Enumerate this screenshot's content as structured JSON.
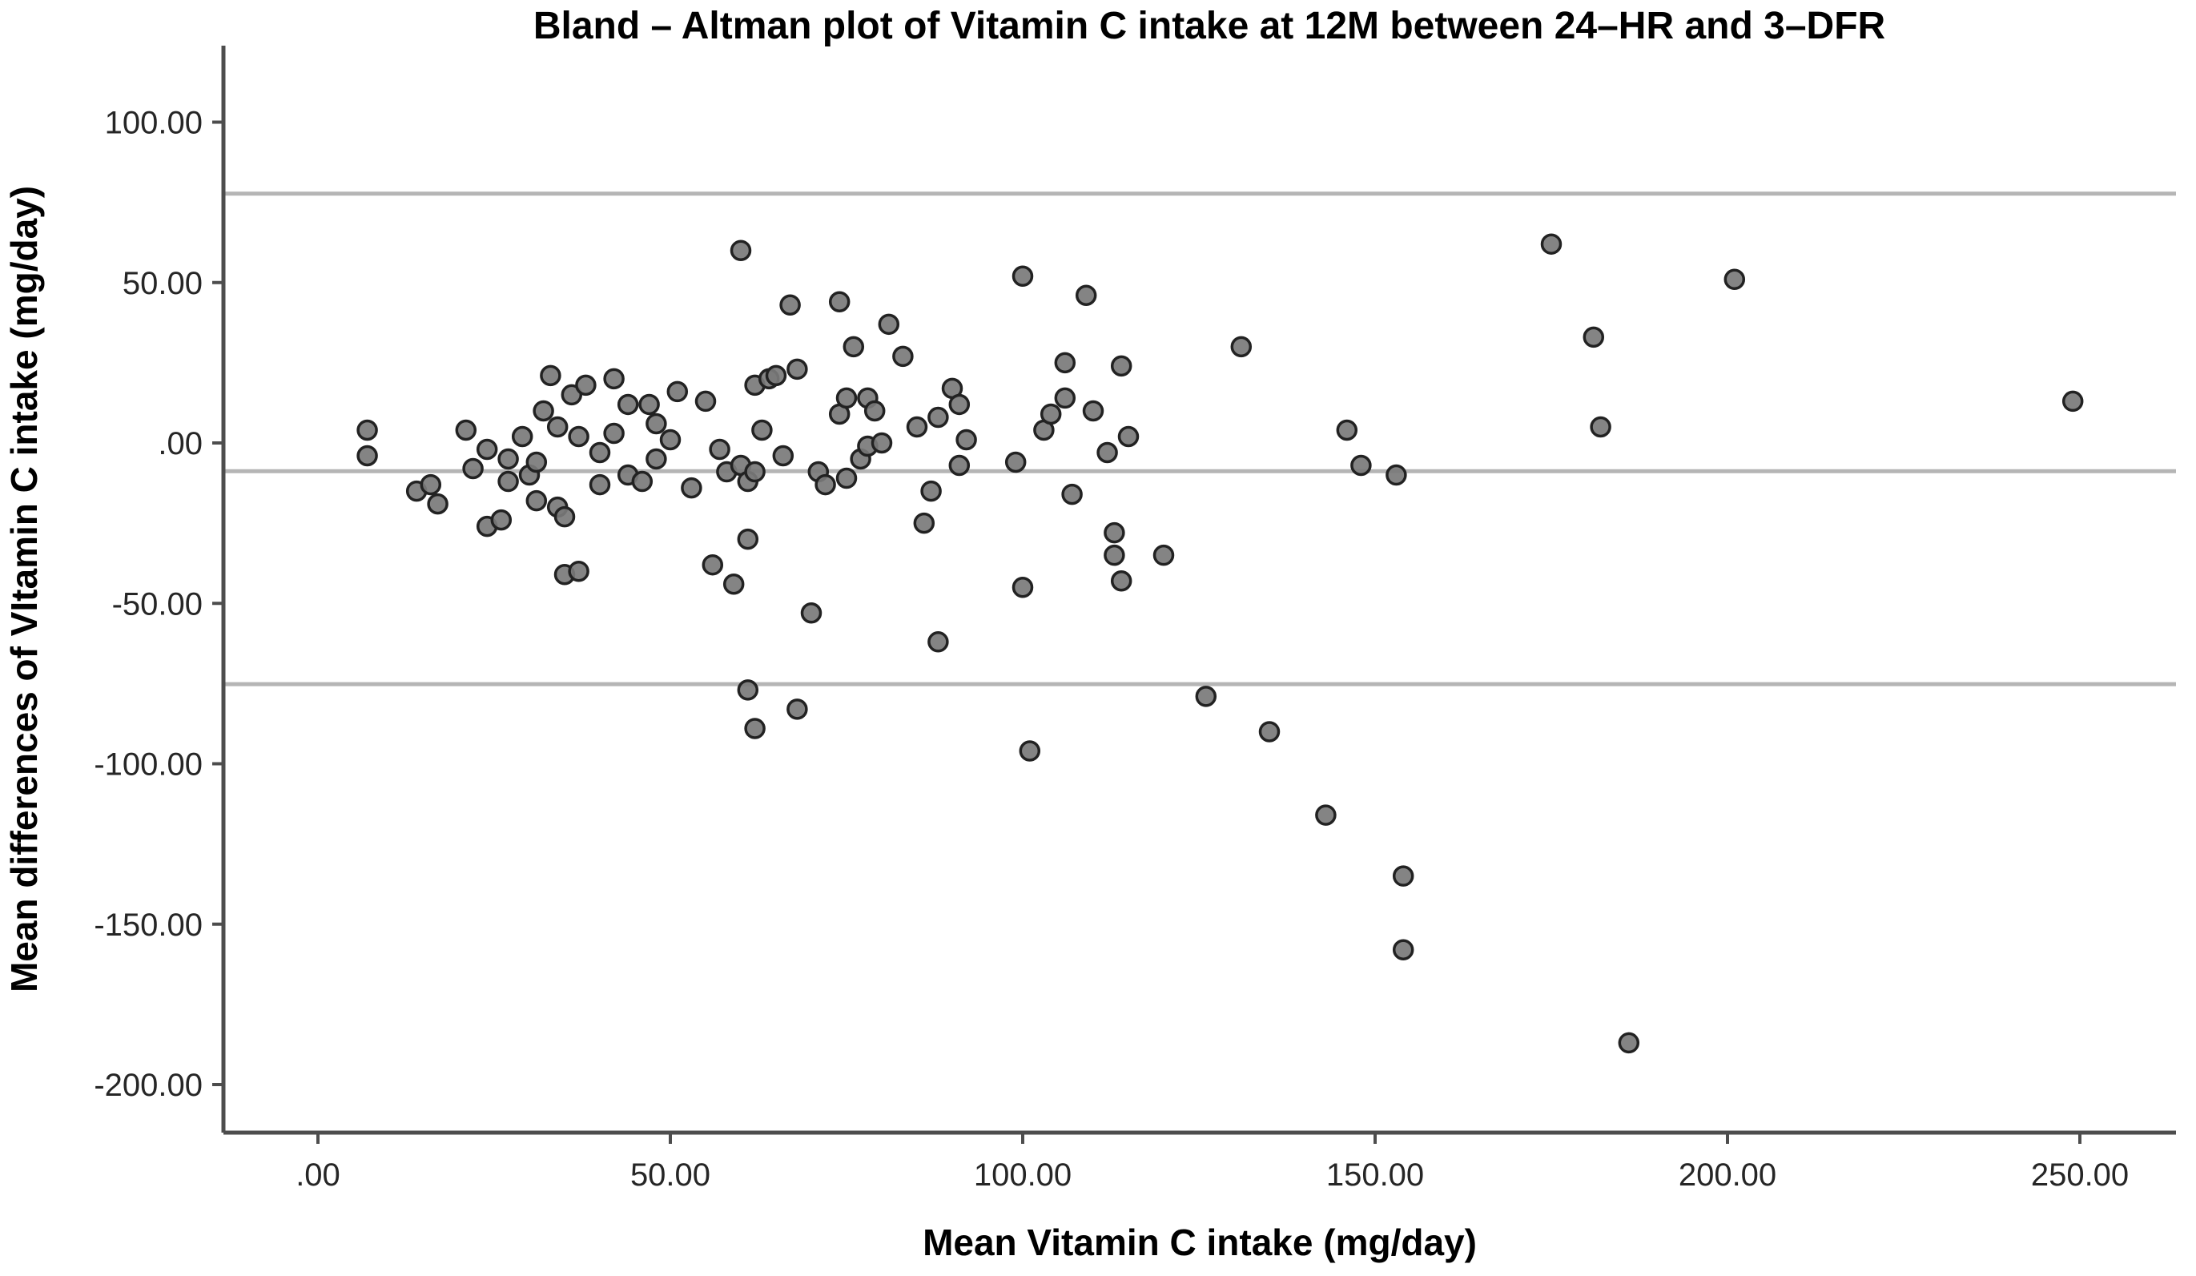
{
  "title": "Bland – Altman plot of Vitamin C intake at 12M between 24–HR and 3–DFR",
  "chart_data": {
    "type": "scatter",
    "title": "Bland – Altman plot of Vitamin C intake at 12M between 24–HR and 3–DFR",
    "xlabel": "Mean Vitamin C intake (mg/day)",
    "ylabel": "Mean differences of VItamin C intake (mg/day)",
    "xlim": [
      -13.5,
      263.5
    ],
    "ylim": [
      -215,
      124
    ],
    "grid": false,
    "legend": false,
    "x_ticks": {
      "values": [
        0,
        50,
        100,
        150,
        200,
        250
      ],
      "labels": [
        ".00",
        "50.00",
        "100.00",
        "150.00",
        "200.00",
        "250.00"
      ]
    },
    "y_ticks": {
      "values": [
        100,
        50,
        0,
        -50,
        -100,
        -150,
        -200
      ],
      "labels": [
        "100.00",
        "50.00",
        ".00",
        "-50.00",
        "-100.00",
        "-150.00",
        "-200.00"
      ]
    },
    "reference_lines": [
      {
        "name": "upper-limit-of-agreement",
        "value": 77.7
      },
      {
        "name": "mean-difference",
        "value": -8.8
      },
      {
        "name": "lower-limit-of-agreement",
        "value": -75.2
      }
    ],
    "points": [
      [
        7,
        4
      ],
      [
        7,
        -4
      ],
      [
        14,
        -15
      ],
      [
        16,
        -13
      ],
      [
        17,
        -19
      ],
      [
        21,
        4
      ],
      [
        22,
        -8
      ],
      [
        24,
        -2
      ],
      [
        24,
        -26
      ],
      [
        26,
        -24
      ],
      [
        27,
        -5
      ],
      [
        27,
        -12
      ],
      [
        29,
        2
      ],
      [
        30,
        -10
      ],
      [
        31,
        -6
      ],
      [
        31,
        -18
      ],
      [
        32,
        10
      ],
      [
        33,
        21
      ],
      [
        34,
        5
      ],
      [
        34,
        -20
      ],
      [
        35,
        -23
      ],
      [
        35,
        -41
      ],
      [
        36,
        15
      ],
      [
        37,
        2
      ],
      [
        37,
        -40
      ],
      [
        38,
        18
      ],
      [
        40,
        -3
      ],
      [
        40,
        -13
      ],
      [
        42,
        20
      ],
      [
        42,
        3
      ],
      [
        44,
        12
      ],
      [
        44,
        -10
      ],
      [
        46,
        -12
      ],
      [
        47,
        12
      ],
      [
        48,
        6
      ],
      [
        48,
        -5
      ],
      [
        50,
        1
      ],
      [
        51,
        16
      ],
      [
        53,
        -14
      ],
      [
        55,
        13
      ],
      [
        56,
        -38
      ],
      [
        57,
        -2
      ],
      [
        58,
        -9
      ],
      [
        59,
        -44
      ],
      [
        60,
        60
      ],
      [
        60,
        -7
      ],
      [
        61,
        -12
      ],
      [
        61,
        -30
      ],
      [
        62,
        18
      ],
      [
        62,
        -9
      ],
      [
        63,
        4
      ],
      [
        64,
        20
      ],
      [
        65,
        21
      ],
      [
        66,
        -4
      ],
      [
        67,
        43
      ],
      [
        68,
        23
      ],
      [
        61,
        -77
      ],
      [
        62,
        -89
      ],
      [
        68,
        -83
      ],
      [
        70,
        -53
      ],
      [
        71,
        -9
      ],
      [
        72,
        -13
      ],
      [
        74,
        44
      ],
      [
        74,
        9
      ],
      [
        75,
        14
      ],
      [
        75,
        -11
      ],
      [
        76,
        30
      ],
      [
        77,
        -5
      ],
      [
        78,
        -1
      ],
      [
        78,
        14
      ],
      [
        79,
        10
      ],
      [
        80,
        0
      ],
      [
        81,
        37
      ],
      [
        83,
        27
      ],
      [
        85,
        5
      ],
      [
        86,
        -25
      ],
      [
        87,
        -15
      ],
      [
        88,
        8
      ],
      [
        88,
        -62
      ],
      [
        90,
        17
      ],
      [
        91,
        12
      ],
      [
        91,
        -7
      ],
      [
        92,
        1
      ],
      [
        99,
        -6
      ],
      [
        100,
        -45
      ],
      [
        100,
        52
      ],
      [
        101,
        -96
      ],
      [
        103,
        4
      ],
      [
        104,
        9
      ],
      [
        106,
        25
      ],
      [
        106,
        14
      ],
      [
        107,
        -16
      ],
      [
        109,
        46
      ],
      [
        110,
        10
      ],
      [
        112,
        -3
      ],
      [
        113,
        -28
      ],
      [
        113,
        -35
      ],
      [
        114,
        -43
      ],
      [
        114,
        24
      ],
      [
        115,
        2
      ],
      [
        120,
        -35
      ],
      [
        126,
        -79
      ],
      [
        131,
        30
      ],
      [
        135,
        -90
      ],
      [
        143,
        -116
      ],
      [
        146,
        4
      ],
      [
        148,
        -7
      ],
      [
        153,
        -10
      ],
      [
        154,
        -135
      ],
      [
        154,
        -158
      ],
      [
        175,
        62
      ],
      [
        181,
        33
      ],
      [
        182,
        5
      ],
      [
        186,
        -187
      ],
      [
        201,
        51
      ],
      [
        249,
        13
      ]
    ],
    "style": {
      "background": "#ffffff",
      "axis_color": "#4d4d4d",
      "tick_label_color": "#262626",
      "reference_line_color": "#b5b5b5",
      "point_fill": "#7a7a7a",
      "point_stroke": "#222222"
    }
  }
}
